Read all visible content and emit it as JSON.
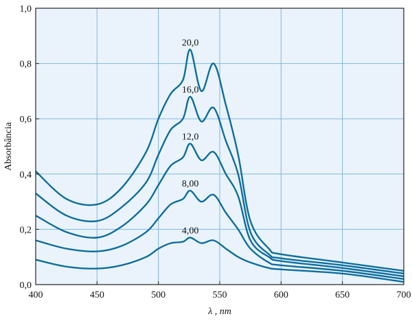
{
  "chart_data": {
    "type": "line",
    "xlabel": "λ , nm",
    "ylabel": "Absorbância",
    "xlim": [
      400,
      700
    ],
    "ylim": [
      0,
      1.0
    ],
    "x_ticks": [
      "400",
      "450",
      "500",
      "550",
      "600",
      "650",
      "700"
    ],
    "y_ticks": [
      "0,0",
      "0,2",
      "0,4",
      "0,6",
      "0,8",
      "1,0"
    ],
    "grid": true,
    "colors": {
      "background": "#eaf3fb",
      "grid": "#7fb6de",
      "line": "#0d6e9c",
      "axis": "#222222"
    },
    "curve_labels": [
      "4,00",
      "8,00",
      "12,0",
      "16,0",
      "20,0"
    ],
    "series": [
      {
        "name": "4,00",
        "x": [
          400,
          425,
          450,
          470,
          490,
          500,
          510,
          520,
          526,
          535,
          545,
          555,
          565,
          575,
          590,
          600,
          650,
          700
        ],
        "y": [
          0.09,
          0.065,
          0.058,
          0.07,
          0.1,
          0.13,
          0.15,
          0.155,
          0.17,
          0.15,
          0.16,
          0.13,
          0.1,
          0.08,
          0.06,
          0.055,
          0.04,
          0.01
        ]
      },
      {
        "name": "8,00",
        "x": [
          400,
          425,
          450,
          470,
          490,
          500,
          510,
          520,
          526,
          535,
          545,
          555,
          565,
          575,
          590,
          600,
          650,
          700
        ],
        "y": [
          0.16,
          0.13,
          0.12,
          0.14,
          0.19,
          0.24,
          0.29,
          0.31,
          0.34,
          0.3,
          0.325,
          0.26,
          0.2,
          0.13,
          0.08,
          0.07,
          0.05,
          0.02
        ]
      },
      {
        "name": "12,0",
        "x": [
          400,
          425,
          450,
          470,
          490,
          500,
          510,
          520,
          526,
          535,
          545,
          555,
          565,
          575,
          590,
          600,
          650,
          700
        ],
        "y": [
          0.25,
          0.19,
          0.17,
          0.21,
          0.29,
          0.36,
          0.43,
          0.46,
          0.51,
          0.45,
          0.48,
          0.4,
          0.32,
          0.16,
          0.1,
          0.085,
          0.06,
          0.03
        ]
      },
      {
        "name": "16,0",
        "x": [
          400,
          425,
          450,
          470,
          490,
          500,
          510,
          520,
          526,
          535,
          545,
          555,
          565,
          575,
          590,
          600,
          650,
          700
        ],
        "y": [
          0.33,
          0.25,
          0.23,
          0.28,
          0.37,
          0.47,
          0.56,
          0.6,
          0.68,
          0.59,
          0.64,
          0.52,
          0.4,
          0.19,
          0.11,
          0.095,
          0.07,
          0.04
        ]
      },
      {
        "name": "20,0",
        "x": [
          400,
          425,
          450,
          470,
          490,
          500,
          510,
          520,
          526,
          535,
          545,
          555,
          565,
          575,
          590,
          600,
          650,
          700
        ],
        "y": [
          0.41,
          0.31,
          0.29,
          0.35,
          0.48,
          0.6,
          0.69,
          0.74,
          0.85,
          0.7,
          0.8,
          0.65,
          0.47,
          0.23,
          0.13,
          0.11,
          0.08,
          0.05
        ]
      }
    ]
  }
}
